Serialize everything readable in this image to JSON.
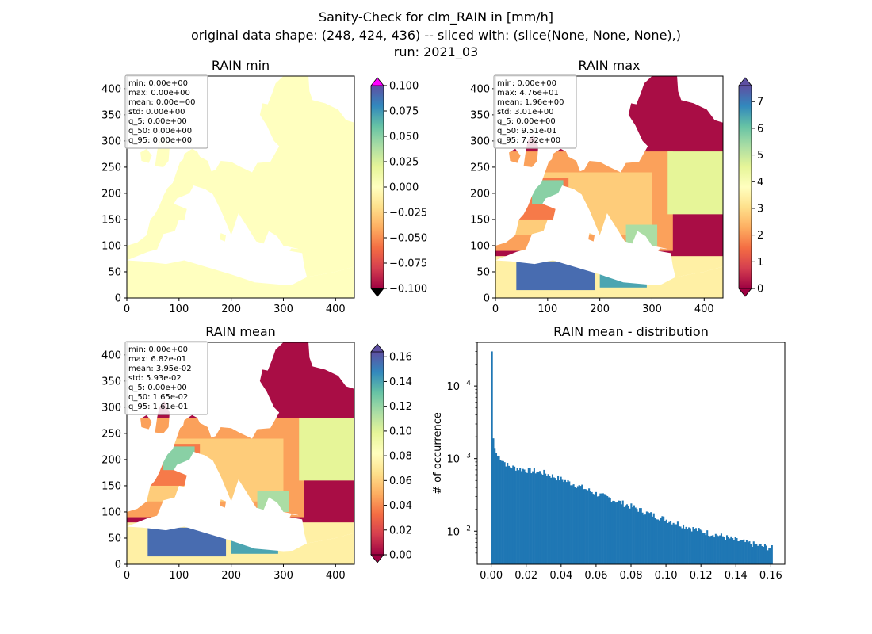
{
  "figure": {
    "suptitle_lines": [
      "Sanity-Check for clm_RAIN in [mm/h]",
      "original data shape: (248, 424, 436) -- sliced with: (slice(None, None, None),)",
      "run: 2021_03"
    ]
  },
  "colors": {
    "spectral": [
      "#9e0142",
      "#d53e4f",
      "#f46d43",
      "#fdae61",
      "#fee08b",
      "#ffffbf",
      "#e6f598",
      "#abdda4",
      "#66c2a5",
      "#3288bd",
      "#5e4fa2"
    ],
    "cbar_over_min": "#ff00ff",
    "cbar_under_min": "#000000",
    "hist_bar": "#1f77b4",
    "stats_box_border": "#b0b0b0"
  },
  "chart_data": [
    {
      "type": "heatmap",
      "title": "RAIN min",
      "xlim": [
        0,
        436
      ],
      "ylim": [
        0,
        424
      ],
      "xticks": [
        0,
        100,
        200,
        300,
        400
      ],
      "yticks": [
        0,
        50,
        100,
        150,
        200,
        250,
        300,
        350,
        400
      ],
      "field": "uniform",
      "colorbar": {
        "range": [
          -0.1,
          0.1
        ],
        "ticks": [
          -0.1,
          -0.075,
          -0.05,
          -0.025,
          0.0,
          0.025,
          0.05,
          0.075,
          0.1
        ],
        "tick_labels": [
          "−0.100",
          "−0.075",
          "−0.050",
          "−0.025",
          "0.000",
          "0.025",
          "0.050",
          "0.075",
          "0.100"
        ],
        "extend": "both"
      },
      "stats": [
        "min: 0.00e+00",
        "max: 0.00e+00",
        "mean: 0.00e+00",
        "std: 0.00e+00",
        "q_5: 0.00e+00",
        "q_50: 0.00e+00",
        "q_95: 0.00e+00"
      ]
    },
    {
      "type": "heatmap",
      "title": "RAIN max",
      "xlim": [
        0,
        436
      ],
      "ylim": [
        0,
        424
      ],
      "xticks": [
        0,
        100,
        200,
        300,
        400
      ],
      "yticks": [
        0,
        50,
        100,
        150,
        200,
        250,
        300,
        350,
        400
      ],
      "field": "rain",
      "colorbar": {
        "range": [
          0,
          7.6
        ],
        "ticks": [
          0,
          1,
          2,
          3,
          4,
          5,
          6,
          7
        ],
        "tick_labels": [
          "0",
          "1",
          "2",
          "3",
          "4",
          "5",
          "6",
          "7"
        ],
        "extend": "both"
      },
      "stats": [
        "min: 0.00e+00",
        "max: 4.76e+01",
        "mean: 1.96e+00",
        "std: 3.01e+00",
        "q_5: 0.00e+00",
        "q_50: 9.51e-01",
        "q_95: 7.52e+00"
      ]
    },
    {
      "type": "heatmap",
      "title": "RAIN mean",
      "xlim": [
        0,
        436
      ],
      "ylim": [
        0,
        424
      ],
      "xticks": [
        0,
        100,
        200,
        300,
        400
      ],
      "yticks": [
        0,
        50,
        100,
        150,
        200,
        250,
        300,
        350,
        400
      ],
      "field": "rain",
      "colorbar": {
        "range": [
          0,
          0.164
        ],
        "ticks": [
          0.0,
          0.02,
          0.04,
          0.06,
          0.08,
          0.1,
          0.12,
          0.14,
          0.16
        ],
        "tick_labels": [
          "0.00",
          "0.02",
          "0.04",
          "0.06",
          "0.08",
          "0.10",
          "0.12",
          "0.14",
          "0.16"
        ],
        "extend": "both"
      },
      "stats": [
        "min: 0.00e+00",
        "max: 6.82e-01",
        "mean: 3.95e-02",
        "std: 5.93e-02",
        "q_5: 0.00e+00",
        "q_50: 1.65e-02",
        "q_95: 1.61e-01"
      ]
    },
    {
      "type": "bar",
      "title": "RAIN mean - distribution",
      "xlabel": "",
      "ylabel": "# of occurrence",
      "xlim": [
        -0.008,
        0.168
      ],
      "xticks": [
        0.0,
        0.02,
        0.04,
        0.06,
        0.08,
        0.1,
        0.12,
        0.14,
        0.16
      ],
      "xtick_labels": [
        "0.00",
        "0.02",
        "0.04",
        "0.06",
        "0.08",
        "0.10",
        "0.12",
        "0.14",
        "0.16"
      ],
      "yscale": "log",
      "ylim": [
        35,
        40000
      ],
      "ytick_labels": [
        {
          "base": "10",
          "exp": "2",
          "value": 100
        },
        {
          "base": "10",
          "exp": "3",
          "value": 1000
        },
        {
          "base": "10",
          "exp": "4",
          "value": 10000
        }
      ],
      "bin_range": [
        0.0,
        0.161
      ],
      "bins": 200,
      "peaks": [
        {
          "x": 0.0,
          "count": 30000
        },
        {
          "x": 0.0008,
          "count": 1900
        },
        {
          "x": 0.0016,
          "count": 1400
        },
        {
          "x": 0.0024,
          "count": 1200
        }
      ],
      "trend": [
        {
          "x": 0.004,
          "count": 1100
        },
        {
          "x": 0.01,
          "count": 780
        },
        {
          "x": 0.02,
          "count": 700
        },
        {
          "x": 0.03,
          "count": 640
        },
        {
          "x": 0.04,
          "count": 520
        },
        {
          "x": 0.05,
          "count": 420
        },
        {
          "x": 0.06,
          "count": 330
        },
        {
          "x": 0.07,
          "count": 270
        },
        {
          "x": 0.08,
          "count": 220
        },
        {
          "x": 0.09,
          "count": 175
        },
        {
          "x": 0.1,
          "count": 145
        },
        {
          "x": 0.11,
          "count": 120
        },
        {
          "x": 0.12,
          "count": 100
        },
        {
          "x": 0.13,
          "count": 88
        },
        {
          "x": 0.14,
          "count": 75
        },
        {
          "x": 0.15,
          "count": 66
        },
        {
          "x": 0.161,
          "count": 58
        }
      ]
    }
  ]
}
